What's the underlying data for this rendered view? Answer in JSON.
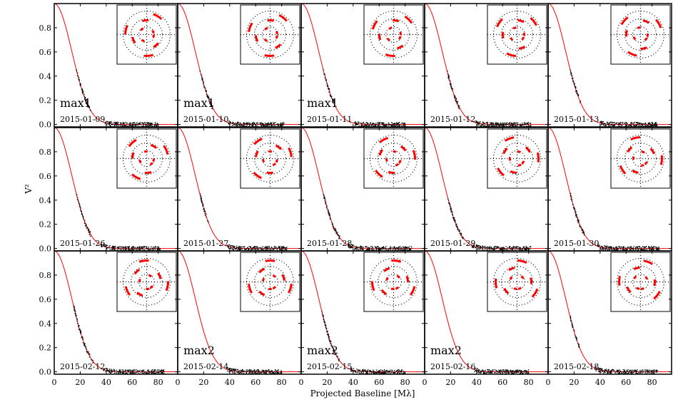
{
  "chart_data": {
    "type": "scatter",
    "title": "",
    "xlabel": "Projected Baseline [Mλ]",
    "ylabel": "V²",
    "xlim": [
      0,
      95
    ],
    "ylim": [
      -0.02,
      1.0
    ],
    "xticks": [
      0,
      20,
      40,
      60,
      80
    ],
    "yticks": [
      0.0,
      0.2,
      0.4,
      0.6,
      0.8
    ],
    "xtick_labels": [
      "0",
      "20",
      "40",
      "60",
      "80"
    ],
    "ytick_labels": [
      "0.0",
      "0.2",
      "0.4",
      "0.6",
      "0.8"
    ],
    "model_curve": {
      "name": "model",
      "color": "#ff0000",
      "fwhm_mlambda": 36
    },
    "observation_color": "#000000",
    "uv_inset_color": "#ff0000",
    "panels": [
      {
        "date": "2015-01-09",
        "label": "max1",
        "segments": [
          [
            17,
            28
          ],
          [
            39,
            52
          ],
          [
            52,
            80
          ]
        ]
      },
      {
        "date": "2015-01-10",
        "label": "max1",
        "segments": [
          [
            17,
            27
          ],
          [
            39,
            52
          ],
          [
            52,
            82
          ]
        ]
      },
      {
        "date": "2015-01-11",
        "label": "max1",
        "segments": [
          [
            17,
            25
          ],
          [
            41,
            52
          ],
          [
            52,
            80
          ]
        ]
      },
      {
        "date": "2015-01-12",
        "label": "",
        "segments": [
          [
            17,
            27
          ],
          [
            39,
            52
          ],
          [
            52,
            82
          ]
        ]
      },
      {
        "date": "2015-01-13",
        "label": "",
        "segments": [
          [
            17,
            25
          ],
          [
            40,
            52
          ],
          [
            52,
            84
          ]
        ]
      },
      {
        "date": "2015-01-26",
        "label": "",
        "segments": [
          [
            17,
            28
          ],
          [
            36,
            52
          ],
          [
            52,
            82
          ]
        ]
      },
      {
        "date": "2015-01-27",
        "label": "",
        "segments": [
          [
            17,
            24
          ],
          [
            38,
            52
          ],
          [
            52,
            84
          ]
        ]
      },
      {
        "date": "2015-01-28",
        "label": "",
        "segments": [
          [
            17,
            30
          ],
          [
            36,
            52
          ],
          [
            52,
            85
          ]
        ]
      },
      {
        "date": "2015-01-29",
        "label": "",
        "segments": [
          [
            18,
            30
          ],
          [
            36,
            52
          ],
          [
            52,
            82
          ]
        ]
      },
      {
        "date": "2015-01-30",
        "label": "",
        "segments": [
          [
            17,
            28
          ],
          [
            38,
            52
          ],
          [
            52,
            86
          ]
        ]
      },
      {
        "date": "2015-02-12",
        "label": "",
        "segments": [
          [
            15,
            30
          ],
          [
            38,
            52
          ],
          [
            52,
            85
          ]
        ]
      },
      {
        "date": "2015-02-14",
        "label": "max2",
        "segments": [
          [
            38,
            52
          ],
          [
            52,
            80
          ]
        ]
      },
      {
        "date": "2015-02-15",
        "label": "max2",
        "segments": [
          [
            16,
            30
          ],
          [
            38,
            52
          ],
          [
            52,
            80
          ]
        ]
      },
      {
        "date": "2015-02-16",
        "label": "max2",
        "segments": [
          [
            38,
            52
          ],
          [
            52,
            80
          ]
        ]
      },
      {
        "date": "2015-02-18",
        "label": "",
        "segments": [
          [
            17,
            24
          ],
          [
            36,
            52
          ],
          [
            52,
            84
          ]
        ]
      }
    ]
  }
}
